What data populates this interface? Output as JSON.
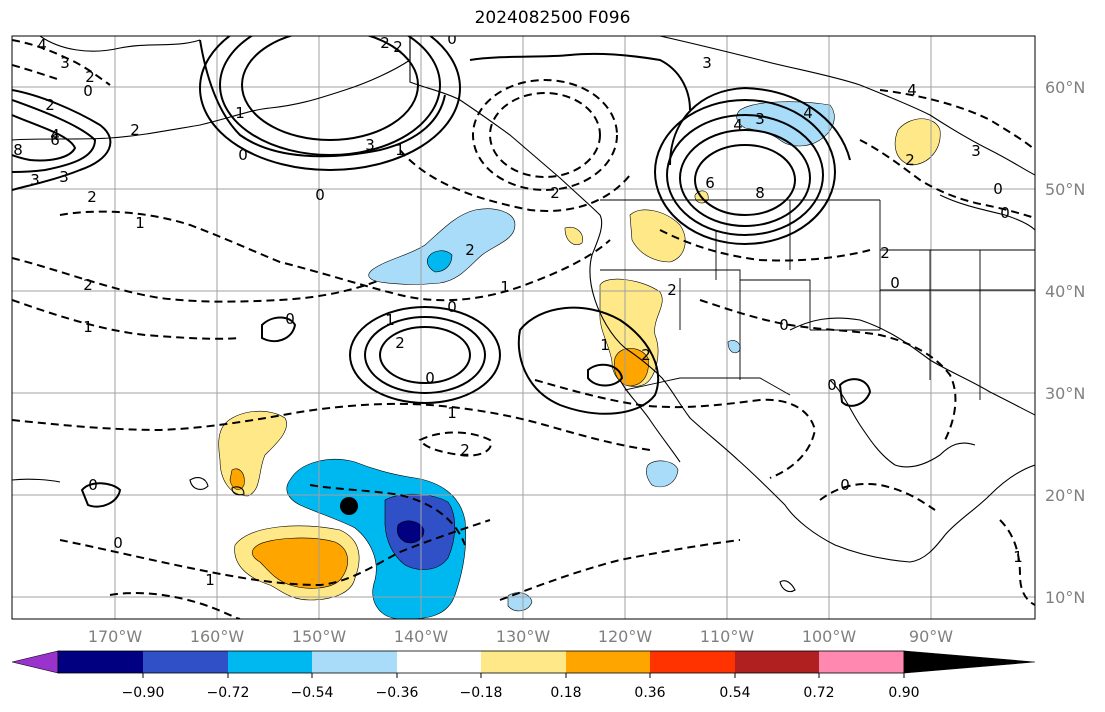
{
  "title": "2024082500 F096",
  "lat_labels": [
    "60°N",
    "50°N",
    "40°N",
    "30°N",
    "20°N",
    "10°N"
  ],
  "lon_labels": [
    "170°W",
    "160°W",
    "150°W",
    "140°W",
    "130°W",
    "120°W",
    "110°W",
    "100°W",
    "90°W"
  ],
  "colorbar": {
    "ticks": [
      "−0.90",
      "−0.72",
      "−0.54",
      "−0.36",
      "−0.18",
      "0.18",
      "0.36",
      "0.54",
      "0.72",
      "0.90"
    ],
    "colors": [
      "#9933cc",
      "#000080",
      "#3050c8",
      "#00b8f0",
      "#a8dcf8",
      "#ffffff",
      "#ffe888",
      "#ffa500",
      "#ff3300",
      "#b02020",
      "#ff88b0"
    ]
  },
  "contour_labels": [
    "4",
    "3",
    "2",
    "0",
    "2",
    "3",
    "3",
    "4",
    "2",
    "6",
    "8",
    "3",
    "1",
    "0",
    "1",
    "2",
    "0",
    "2",
    "2",
    "0",
    "1",
    "3",
    "4",
    "4",
    "8",
    "6",
    "3",
    "2",
    "0",
    "0",
    "4",
    "2",
    "2",
    "1",
    "2",
    "0",
    "2",
    "3",
    "1",
    "0",
    "1",
    "0",
    "1",
    "2",
    "2",
    "0",
    "1",
    "2",
    "1",
    "2",
    "0",
    "0",
    "0",
    "1",
    "0",
    "0"
  ],
  "marker": "storm-center"
}
